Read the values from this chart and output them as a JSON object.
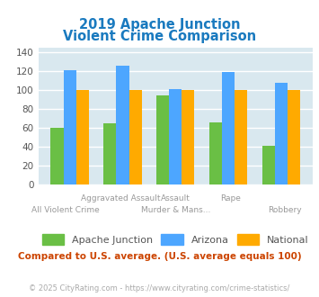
{
  "title_line1": "2019 Apache Junction",
  "title_line2": "Violent Crime Comparison",
  "title_color": "#1a7abf",
  "categories": [
    "All Violent Crime",
    "Aggravated Assault",
    "Murder & Mans...",
    "Rape",
    "Robbery"
  ],
  "top_labels": [
    "",
    "Aggravated Assault",
    "Assault",
    "Rape",
    ""
  ],
  "bot_labels": [
    "All Violent Crime",
    "",
    "Murder & Mans...",
    "",
    "Robbery"
  ],
  "apache_junction": [
    60,
    65,
    94,
    66,
    41
  ],
  "arizona": [
    121,
    126,
    101,
    119,
    108
  ],
  "national": [
    100,
    100,
    100,
    100,
    100
  ],
  "colors": {
    "apache_junction": "#6abf45",
    "arizona": "#4da6ff",
    "national": "#ffaa00"
  },
  "ylim": [
    0,
    145
  ],
  "yticks": [
    0,
    20,
    40,
    60,
    80,
    100,
    120,
    140
  ],
  "plot_bg": "#d9e8ef",
  "grid_color": "#ffffff",
  "subtitle": "Compared to U.S. average. (U.S. average equals 100)",
  "subtitle_color": "#cc4400",
  "footer": "© 2025 CityRating.com - https://www.cityrating.com/crime-statistics/",
  "footer_color": "#aaaaaa",
  "legend_labels": [
    "Apache Junction",
    "Arizona",
    "National"
  ]
}
